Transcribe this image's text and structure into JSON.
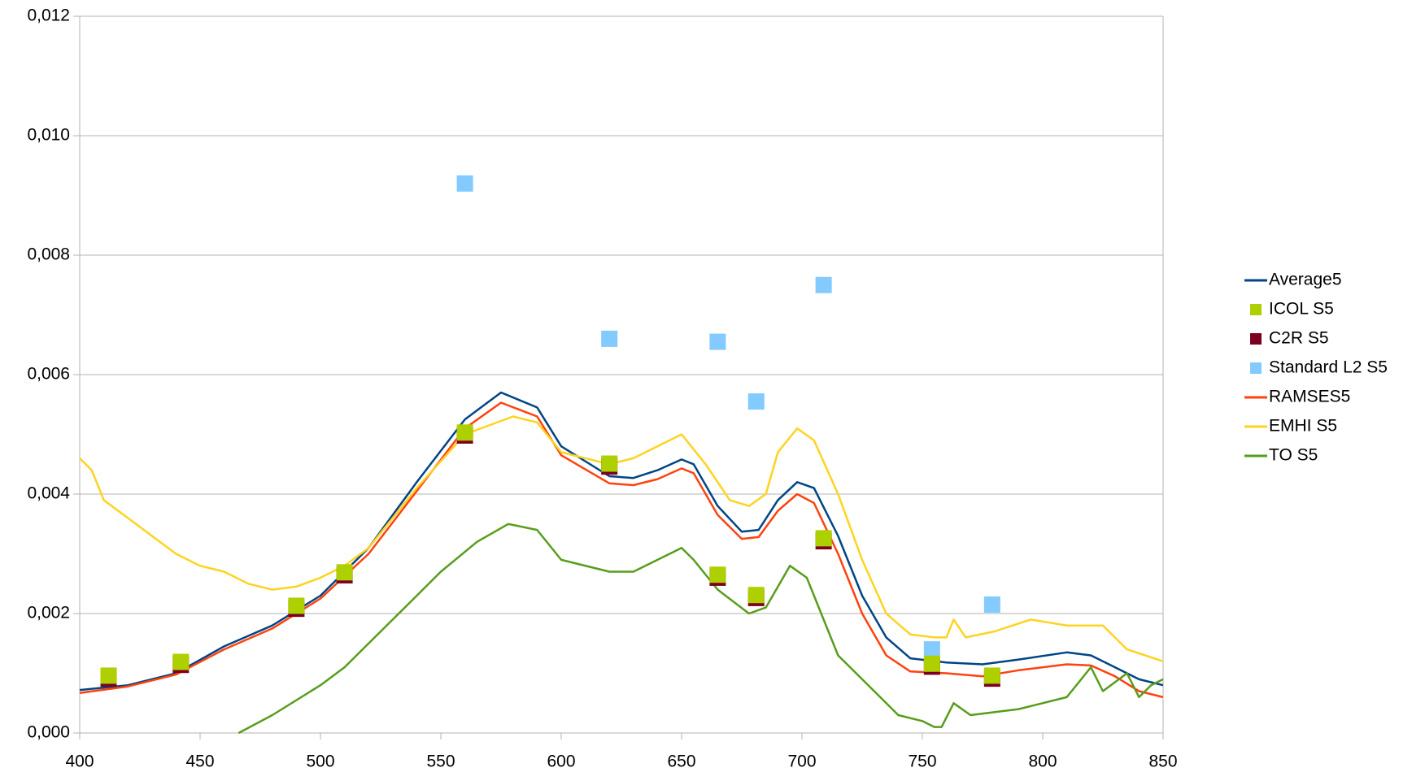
{
  "chart_data": {
    "type": "line",
    "xlim": [
      400,
      850
    ],
    "xticks": [
      400,
      450,
      500,
      550,
      600,
      650,
      700,
      750,
      800,
      850
    ],
    "ylim": [
      0,
      0.012
    ],
    "yticks": [
      {
        "value": 0,
        "label": "0,000"
      },
      {
        "value": 0.002,
        "label": "0,002"
      },
      {
        "value": 0.004,
        "label": "0,004"
      },
      {
        "value": 0.006,
        "label": "0,006"
      },
      {
        "value": 0.008,
        "label": "0,008"
      },
      {
        "value": 0.01,
        "label": "0,010"
      },
      {
        "value": 0.012,
        "label": "0,012"
      }
    ],
    "grid": true,
    "legend": "right",
    "series": [
      {
        "name": "Average5",
        "type": "line",
        "color": "#004586",
        "x": [
          400,
          420,
          440,
          460,
          480,
          500,
          520,
          540,
          560,
          575,
          590,
          600,
          620,
          630,
          640,
          650,
          655,
          665,
          675,
          682,
          690,
          698,
          705,
          715,
          725,
          735,
          745,
          760,
          775,
          790,
          810,
          820,
          830,
          840,
          850
        ],
        "values": [
          0.00072,
          0.0008,
          0.001,
          0.00145,
          0.0018,
          0.0023,
          0.0031,
          0.0042,
          0.00525,
          0.0057,
          0.00545,
          0.0048,
          0.0043,
          0.00427,
          0.0044,
          0.00458,
          0.0045,
          0.0038,
          0.00337,
          0.0034,
          0.0039,
          0.0042,
          0.0041,
          0.0033,
          0.0023,
          0.0016,
          0.00125,
          0.00118,
          0.00115,
          0.00123,
          0.00135,
          0.0013,
          0.0011,
          0.0009,
          0.0008
        ]
      },
      {
        "name": "ICOL S5",
        "type": "scatter",
        "color": "#aecf00",
        "x": [
          412,
          442,
          490,
          510,
          560,
          620,
          665,
          681,
          709,
          754,
          779
        ],
        "values": [
          0.00096,
          0.00119,
          0.00213,
          0.00269,
          0.00503,
          0.00451,
          0.00265,
          0.00231,
          0.00326,
          0.00116,
          0.00096
        ]
      },
      {
        "name": "C2R S5",
        "type": "scatter",
        "color": "#7e0021",
        "x": [
          412,
          442,
          490,
          510,
          560,
          620,
          665,
          681,
          709,
          754,
          779
        ],
        "values": [
          0.00091,
          0.00114,
          0.00208,
          0.00264,
          0.00498,
          0.00446,
          0.0026,
          0.00226,
          0.00321,
          0.00111,
          0.00091
        ]
      },
      {
        "name": "Standard L2 S5",
        "type": "scatter",
        "color": "#83caff",
        "x": [
          560,
          620,
          665,
          681,
          709,
          754,
          779
        ],
        "values": [
          0.0092,
          0.0066,
          0.00655,
          0.00555,
          0.0075,
          0.0014,
          0.00215
        ]
      },
      {
        "name": "RAMSES5",
        "type": "line",
        "color": "#ff420e",
        "x": [
          400,
          420,
          440,
          460,
          480,
          500,
          520,
          540,
          560,
          575,
          590,
          600,
          620,
          630,
          640,
          650,
          655,
          665,
          675,
          682,
          690,
          698,
          705,
          715,
          725,
          735,
          745,
          760,
          775,
          790,
          810,
          820,
          830,
          840,
          850
        ],
        "values": [
          0.00067,
          0.00078,
          0.00098,
          0.0014,
          0.00175,
          0.00225,
          0.003,
          0.00405,
          0.0051,
          0.00553,
          0.0053,
          0.00465,
          0.00418,
          0.00415,
          0.00425,
          0.00443,
          0.00435,
          0.00365,
          0.00325,
          0.00328,
          0.00372,
          0.004,
          0.00385,
          0.003,
          0.002,
          0.0013,
          0.00103,
          0.001,
          0.00095,
          0.00105,
          0.00115,
          0.00113,
          0.00095,
          0.0007,
          0.0006
        ]
      },
      {
        "name": "EMHI S5",
        "type": "line",
        "color": "#ffd320",
        "x": [
          400,
          405,
          410,
          420,
          430,
          440,
          450,
          460,
          470,
          480,
          490,
          500,
          510,
          520,
          540,
          560,
          580,
          590,
          600,
          620,
          630,
          650,
          660,
          670,
          678,
          685,
          690,
          698,
          705,
          715,
          725,
          735,
          745,
          755,
          760,
          763,
          768,
          780,
          795,
          810,
          825,
          835,
          850
        ],
        "values": [
          0.0046,
          0.0044,
          0.0039,
          0.0036,
          0.0033,
          0.003,
          0.0028,
          0.0027,
          0.0025,
          0.0024,
          0.00245,
          0.0026,
          0.0028,
          0.0031,
          0.0041,
          0.005,
          0.0053,
          0.0052,
          0.0047,
          0.0045,
          0.0046,
          0.005,
          0.0045,
          0.0039,
          0.0038,
          0.004,
          0.0047,
          0.0051,
          0.0049,
          0.004,
          0.0029,
          0.002,
          0.00165,
          0.0016,
          0.0016,
          0.0019,
          0.0016,
          0.0017,
          0.0019,
          0.0018,
          0.0018,
          0.0014,
          0.0012
        ]
      },
      {
        "name": "TO S5",
        "type": "line",
        "color": "#579d1c",
        "x": [
          466,
          480,
          500,
          510,
          530,
          550,
          565,
          578,
          590,
          600,
          620,
          630,
          650,
          655,
          665,
          678,
          685,
          695,
          702,
          715,
          730,
          740,
          750,
          755,
          758,
          763,
          770,
          790,
          810,
          820,
          825,
          835,
          840,
          845,
          850
        ],
        "values": [
          0,
          0.0003,
          0.0008,
          0.0011,
          0.0019,
          0.0027,
          0.0032,
          0.0035,
          0.0034,
          0.0029,
          0.0027,
          0.0027,
          0.0031,
          0.0029,
          0.0024,
          0.002,
          0.0021,
          0.0028,
          0.0026,
          0.0013,
          0.0007,
          0.0003,
          0.0002,
          0.0001,
          0.0001,
          0.0005,
          0.0003,
          0.0004,
          0.0006,
          0.0011,
          0.0007,
          0.001,
          0.0006,
          0.0008,
          0.0009
        ]
      }
    ]
  }
}
